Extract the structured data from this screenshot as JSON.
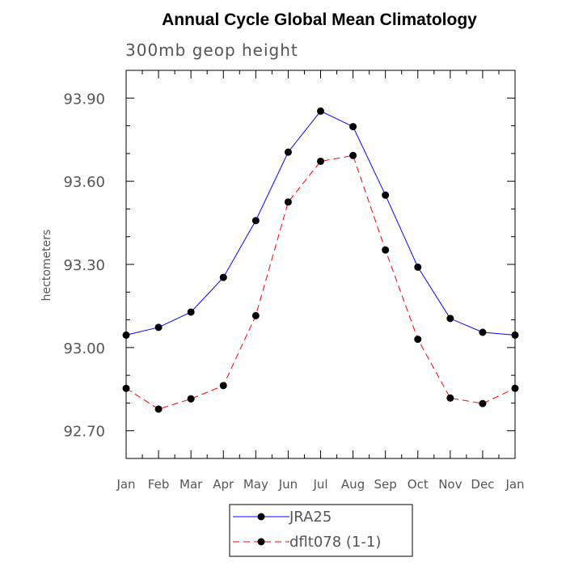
{
  "chart_data": {
    "type": "line",
    "title": "Annual Cycle Global Mean Climatology",
    "subtitle": "300mb geop height",
    "xlabel": "",
    "ylabel": "hectometers",
    "categories": [
      "Jan",
      "Feb",
      "Mar",
      "Apr",
      "May",
      "Jun",
      "Jul",
      "Aug",
      "Sep",
      "Oct",
      "Nov",
      "Dec",
      "Jan"
    ],
    "yticks": [
      "92.70",
      "93.00",
      "93.30",
      "93.60",
      "93.90"
    ],
    "ylim": [
      92.6,
      94.0
    ],
    "series": [
      {
        "name": "JRA25",
        "color": "#0000ff",
        "dash": "solid",
        "values": [
          93.045,
          93.073,
          93.128,
          93.253,
          93.458,
          93.705,
          93.853,
          93.797,
          93.55,
          93.29,
          93.105,
          93.055,
          93.045
        ]
      },
      {
        "name": "dflt078 (1-1)",
        "color": "#ff0000",
        "dash": "dashed",
        "values": [
          92.853,
          92.778,
          92.815,
          92.863,
          93.115,
          93.525,
          93.672,
          93.693,
          93.352,
          93.03,
          92.818,
          92.798,
          92.853
        ]
      }
    ],
    "legend_position": "bottom"
  }
}
